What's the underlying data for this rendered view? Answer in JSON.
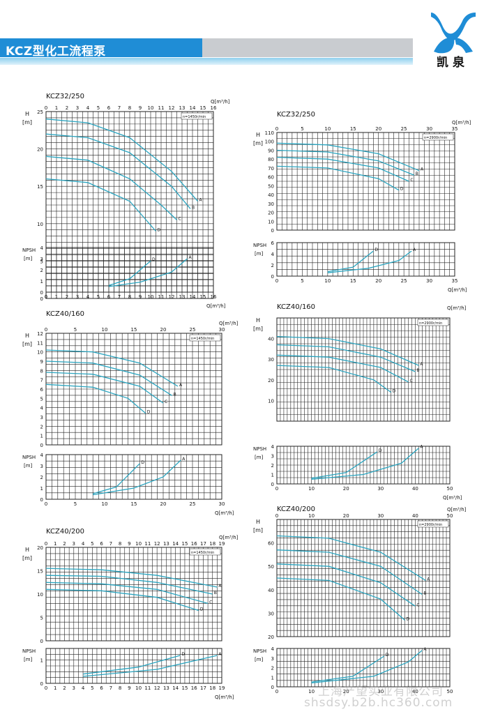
{
  "header": {
    "title": "KCZ型化工流程泵",
    "logo_text": "凯泉",
    "logo_mark": "KX-logo-mark"
  },
  "watermark": {
    "line1": "上海产望实业有限公司",
    "line2": "shsdsy.b2b.hc360.com"
  },
  "colors": {
    "curve": "#2aa5c0",
    "grid": "#222222",
    "banner": "#1f8dd6"
  },
  "chart_data": [
    {
      "type": "line",
      "title": "KCZ32/250",
      "speed": "n=1450r/min",
      "xlabel": "Q[m³/h]",
      "ylabel": "H [m]",
      "npsh_label": "NPSH [m]",
      "xlim": [
        0,
        16
      ],
      "xticks": [
        0,
        1,
        2,
        3,
        4,
        5,
        6,
        7,
        8,
        9,
        10,
        11,
        12,
        13,
        14,
        15,
        16
      ],
      "ylim": [
        0,
        25
      ],
      "yticks": [
        0,
        5,
        10,
        15,
        20,
        25
      ],
      "npsh_ylim": [
        0,
        4
      ],
      "npsh_yticks": [
        0,
        1,
        2,
        3,
        4
      ],
      "series": [
        {
          "name": "A",
          "x": [
            0,
            4,
            8,
            12,
            14.5
          ],
          "y": [
            24,
            23.5,
            21.5,
            17,
            13
          ]
        },
        {
          "name": "B",
          "x": [
            0,
            4,
            8,
            12,
            13.8
          ],
          "y": [
            22,
            21.5,
            19.5,
            15,
            12
          ]
        },
        {
          "name": "C",
          "x": [
            0,
            4,
            8,
            11,
            12.5
          ],
          "y": [
            19,
            18.5,
            16,
            12.5,
            10.5
          ]
        },
        {
          "name": "D",
          "x": [
            0,
            4,
            8,
            10.5
          ],
          "y": [
            16,
            15.5,
            13,
            9
          ]
        }
      ],
      "npsh_series": [
        {
          "name": "D",
          "x": [
            6,
            8,
            10
          ],
          "y": [
            0.6,
            1.2,
            2.8
          ]
        },
        {
          "name": "A",
          "x": [
            6,
            9,
            12,
            13.5
          ],
          "y": [
            0.5,
            0.9,
            1.8,
            3
          ]
        }
      ]
    },
    {
      "type": "line",
      "title": "KCZ32/250",
      "speed": "n=2900r/min",
      "xlabel": "Q[m³/h]",
      "ylabel": "H [m]",
      "npsh_label": "NPSH [m]",
      "xlim": [
        0,
        35
      ],
      "xticks": [
        0,
        5,
        10,
        15,
        20,
        25,
        30,
        35
      ],
      "ylim": [
        0,
        110
      ],
      "yticks": [
        0,
        10,
        20,
        30,
        40,
        50,
        60,
        70,
        80,
        90,
        100,
        110
      ],
      "npsh_ylim": [
        0,
        6
      ],
      "npsh_yticks": [
        0,
        2,
        4,
        6
      ],
      "series": [
        {
          "name": "A",
          "x": [
            0,
            10,
            20,
            28
          ],
          "y": [
            98,
            96,
            86,
            67
          ]
        },
        {
          "name": "B",
          "x": [
            0,
            10,
            20,
            27
          ],
          "y": [
            90,
            88,
            78,
            62
          ]
        },
        {
          "name": "C",
          "x": [
            0,
            10,
            20,
            26
          ],
          "y": [
            82,
            80,
            70,
            55
          ]
        },
        {
          "name": "D",
          "x": [
            0,
            10,
            20,
            24
          ],
          "y": [
            72,
            70,
            58,
            45
          ]
        }
      ],
      "npsh_series": [
        {
          "name": "D",
          "x": [
            10,
            15,
            19
          ],
          "y": [
            0.8,
            1.6,
            4.5
          ]
        },
        {
          "name": "A",
          "x": [
            10,
            18,
            24,
            26.5
          ],
          "y": [
            0.6,
            1.4,
            2.8,
            4.5
          ]
        }
      ]
    },
    {
      "type": "line",
      "title": "KCZ40/160",
      "speed": "n=1450r/min",
      "xlabel": "Q[m³/h]",
      "ylabel": "H [m]",
      "npsh_label": "NPSH [m]",
      "xlim": [
        0,
        30
      ],
      "xticks": [
        0,
        5,
        10,
        15,
        20,
        25,
        30
      ],
      "ylim": [
        0,
        12
      ],
      "yticks": [
        0,
        1,
        2,
        3,
        4,
        5,
        6,
        7,
        8,
        9,
        10,
        11,
        12
      ],
      "npsh_ylim": [
        0,
        4
      ],
      "npsh_yticks": [
        0,
        1,
        2,
        3,
        4
      ],
      "series": [
        {
          "name": "A",
          "x": [
            0,
            8,
            16,
            22.5
          ],
          "y": [
            10.2,
            10,
            8.8,
            6.3
          ]
        },
        {
          "name": "B",
          "x": [
            0,
            8,
            16,
            21.5
          ],
          "y": [
            9,
            8.8,
            7.5,
            5.3
          ]
        },
        {
          "name": "C",
          "x": [
            0,
            8,
            16,
            20
          ],
          "y": [
            7.8,
            7.6,
            6.3,
            4.5
          ]
        },
        {
          "name": "D",
          "x": [
            0,
            8,
            14,
            17
          ],
          "y": [
            6.5,
            6.2,
            5,
            3.4
          ]
        }
      ],
      "npsh_series": [
        {
          "name": "D",
          "x": [
            8,
            12,
            16
          ],
          "y": [
            0.5,
            1.1,
            3.2
          ]
        },
        {
          "name": "A",
          "x": [
            8,
            15,
            20,
            23
          ],
          "y": [
            0.4,
            1,
            2,
            3.5
          ]
        }
      ]
    },
    {
      "type": "line",
      "title": "KCZ40/160",
      "speed": "n=2900r/min",
      "xlabel": "Q[m³/h]",
      "ylabel": "H [m]",
      "npsh_label": "NPSH [m]",
      "xlim": [
        0,
        50
      ],
      "xticks": [
        0,
        10,
        20,
        30,
        40,
        50
      ],
      "ylim": [
        0,
        50
      ],
      "yticks": [
        10,
        20,
        30,
        40
      ],
      "npsh_ylim": [
        0,
        4
      ],
      "npsh_yticks": [
        0,
        1,
        2,
        3,
        4
      ],
      "series": [
        {
          "name": "A",
          "x": [
            0,
            15,
            30,
            41
          ],
          "y": [
            41,
            40,
            35,
            27
          ]
        },
        {
          "name": "B",
          "x": [
            0,
            15,
            30,
            40
          ],
          "y": [
            37,
            36,
            31,
            24
          ]
        },
        {
          "name": "C",
          "x": [
            0,
            15,
            30,
            38
          ],
          "y": [
            32,
            31,
            26,
            19
          ]
        },
        {
          "name": "D",
          "x": [
            0,
            15,
            28,
            33
          ],
          "y": [
            27,
            26,
            20,
            14
          ]
        }
      ],
      "npsh_series": [
        {
          "name": "D",
          "x": [
            10,
            20,
            29
          ],
          "y": [
            0.6,
            1.2,
            3.4
          ]
        },
        {
          "name": "A",
          "x": [
            10,
            25,
            36,
            41
          ],
          "y": [
            0.5,
            1,
            2.2,
            3.8
          ]
        }
      ]
    },
    {
      "type": "line",
      "title": "KCZ40/200",
      "speed": "n=1450r/min",
      "xlabel": "Q[m³/h]",
      "ylabel": "H [m]",
      "npsh_label": "NPSH [m]",
      "xlim": [
        0,
        19
      ],
      "xticks": [
        0,
        1,
        2,
        3,
        4,
        5,
        6,
        7,
        8,
        9,
        10,
        11,
        12,
        13,
        14,
        15,
        16,
        17,
        18,
        19
      ],
      "ylim": [
        0,
        20
      ],
      "yticks": [
        0,
        5,
        10,
        15,
        20
      ],
      "npsh_ylim": [
        0,
        1.5
      ],
      "npsh_yticks": [
        0,
        1.0
      ],
      "series": [
        {
          "name": "A",
          "x": [
            0,
            6,
            12,
            18.5
          ],
          "y": [
            15.5,
            15.2,
            14,
            11.5
          ]
        },
        {
          "name": "B",
          "x": [
            0,
            6,
            12,
            18
          ],
          "y": [
            14,
            13.8,
            12.5,
            10
          ]
        },
        {
          "name": "C",
          "x": [
            0,
            6,
            12,
            17.5
          ],
          "y": [
            12.5,
            12.2,
            11,
            8
          ]
        },
        {
          "name": "D",
          "x": [
            0,
            6,
            12,
            16.5
          ],
          "y": [
            11,
            10.7,
            9.3,
            6.5
          ]
        }
      ],
      "npsh_series": [
        {
          "name": "D",
          "x": [
            4,
            10,
            14.5
          ],
          "y": [
            0.4,
            0.7,
            1.2
          ]
        },
        {
          "name": "A",
          "x": [
            4,
            12,
            18.5
          ],
          "y": [
            0.3,
            0.6,
            1.2
          ]
        }
      ]
    },
    {
      "type": "line",
      "title": "KCZ40/200",
      "speed": "n=2900r/min",
      "xlabel": "Q[m³/h]",
      "ylabel": "H [m]",
      "npsh_label": "NPSH [m]",
      "xlim": [
        0,
        50
      ],
      "xticks": [
        0,
        10,
        20,
        30,
        40,
        50
      ],
      "ylim": [
        20,
        70
      ],
      "yticks": [
        20,
        30,
        40,
        50,
        60
      ],
      "npsh_ylim": [
        0,
        4
      ],
      "npsh_yticks": [
        0,
        1,
        2,
        3,
        4
      ],
      "series": [
        {
          "name": "A",
          "x": [
            0,
            15,
            30,
            43
          ],
          "y": [
            63,
            62,
            56,
            44
          ]
        },
        {
          "name": "B",
          "x": [
            0,
            15,
            30,
            42
          ],
          "y": [
            57,
            56,
            50,
            38
          ]
        },
        {
          "name": "C",
          "x": [
            0,
            15,
            30,
            40
          ],
          "y": [
            51,
            50,
            43,
            33
          ]
        },
        {
          "name": "D",
          "x": [
            0,
            15,
            30,
            37
          ],
          "y": [
            45,
            44,
            36,
            27
          ]
        }
      ],
      "npsh_series": [
        {
          "name": "D",
          "x": [
            10,
            22,
            31
          ],
          "y": [
            0.5,
            1.1,
            3.2
          ]
        },
        {
          "name": "A",
          "x": [
            10,
            28,
            38,
            42
          ],
          "y": [
            0.4,
            1.1,
            2.6,
            3.8
          ]
        }
      ]
    }
  ]
}
